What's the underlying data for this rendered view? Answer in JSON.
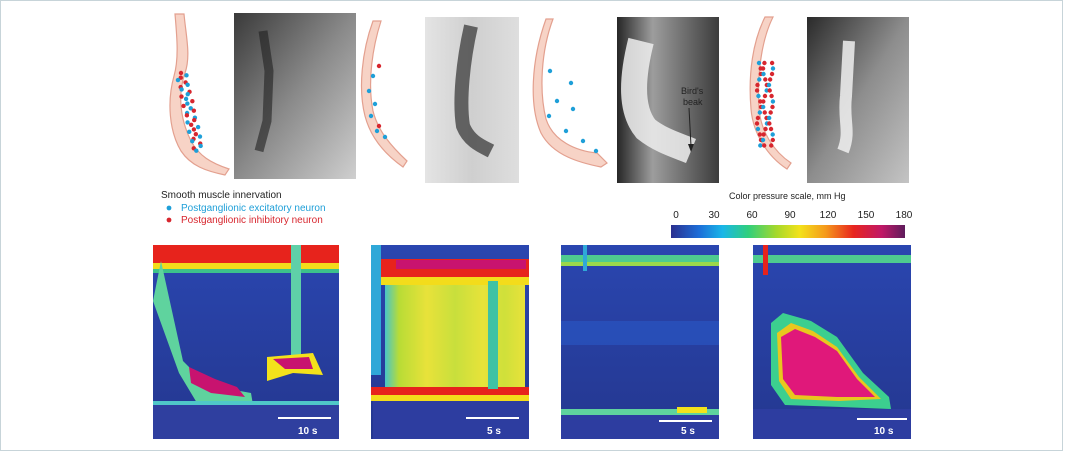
{
  "legend": {
    "title": "Smooth muscle innervation",
    "items": [
      {
        "label": "Postganglionic excitatory neuron",
        "color": "#1e9fd8"
      },
      {
        "label": "Postganglionic inhibitory neuron",
        "color": "#d7262e"
      }
    ]
  },
  "annotation": {
    "line1": "Bird's",
    "line2": "beak"
  },
  "pressure_scale": {
    "title": "Color pressure scale, mm Hg",
    "ticks": [
      "0",
      "30",
      "60",
      "90",
      "120",
      "150",
      "180"
    ],
    "colors": [
      "#2b2f8f",
      "#1d6ed8",
      "#19b6e8",
      "#2fcf7d",
      "#a5d82b",
      "#f3e21b",
      "#f59a1c",
      "#e8251f",
      "#c01867",
      "#5e1c5c"
    ]
  },
  "panels": [
    {
      "scale_label": "10 s"
    },
    {
      "scale_label": "5 s"
    },
    {
      "scale_label": "5 s"
    },
    {
      "scale_label": "10 s"
    }
  ],
  "colors": {
    "border": "#c7d4d9",
    "diagram_fill": "#f7d3c6",
    "diagram_stroke": "#e3a08f",
    "excitatory": "#1e9fd8",
    "inhibitory": "#d7262e"
  }
}
